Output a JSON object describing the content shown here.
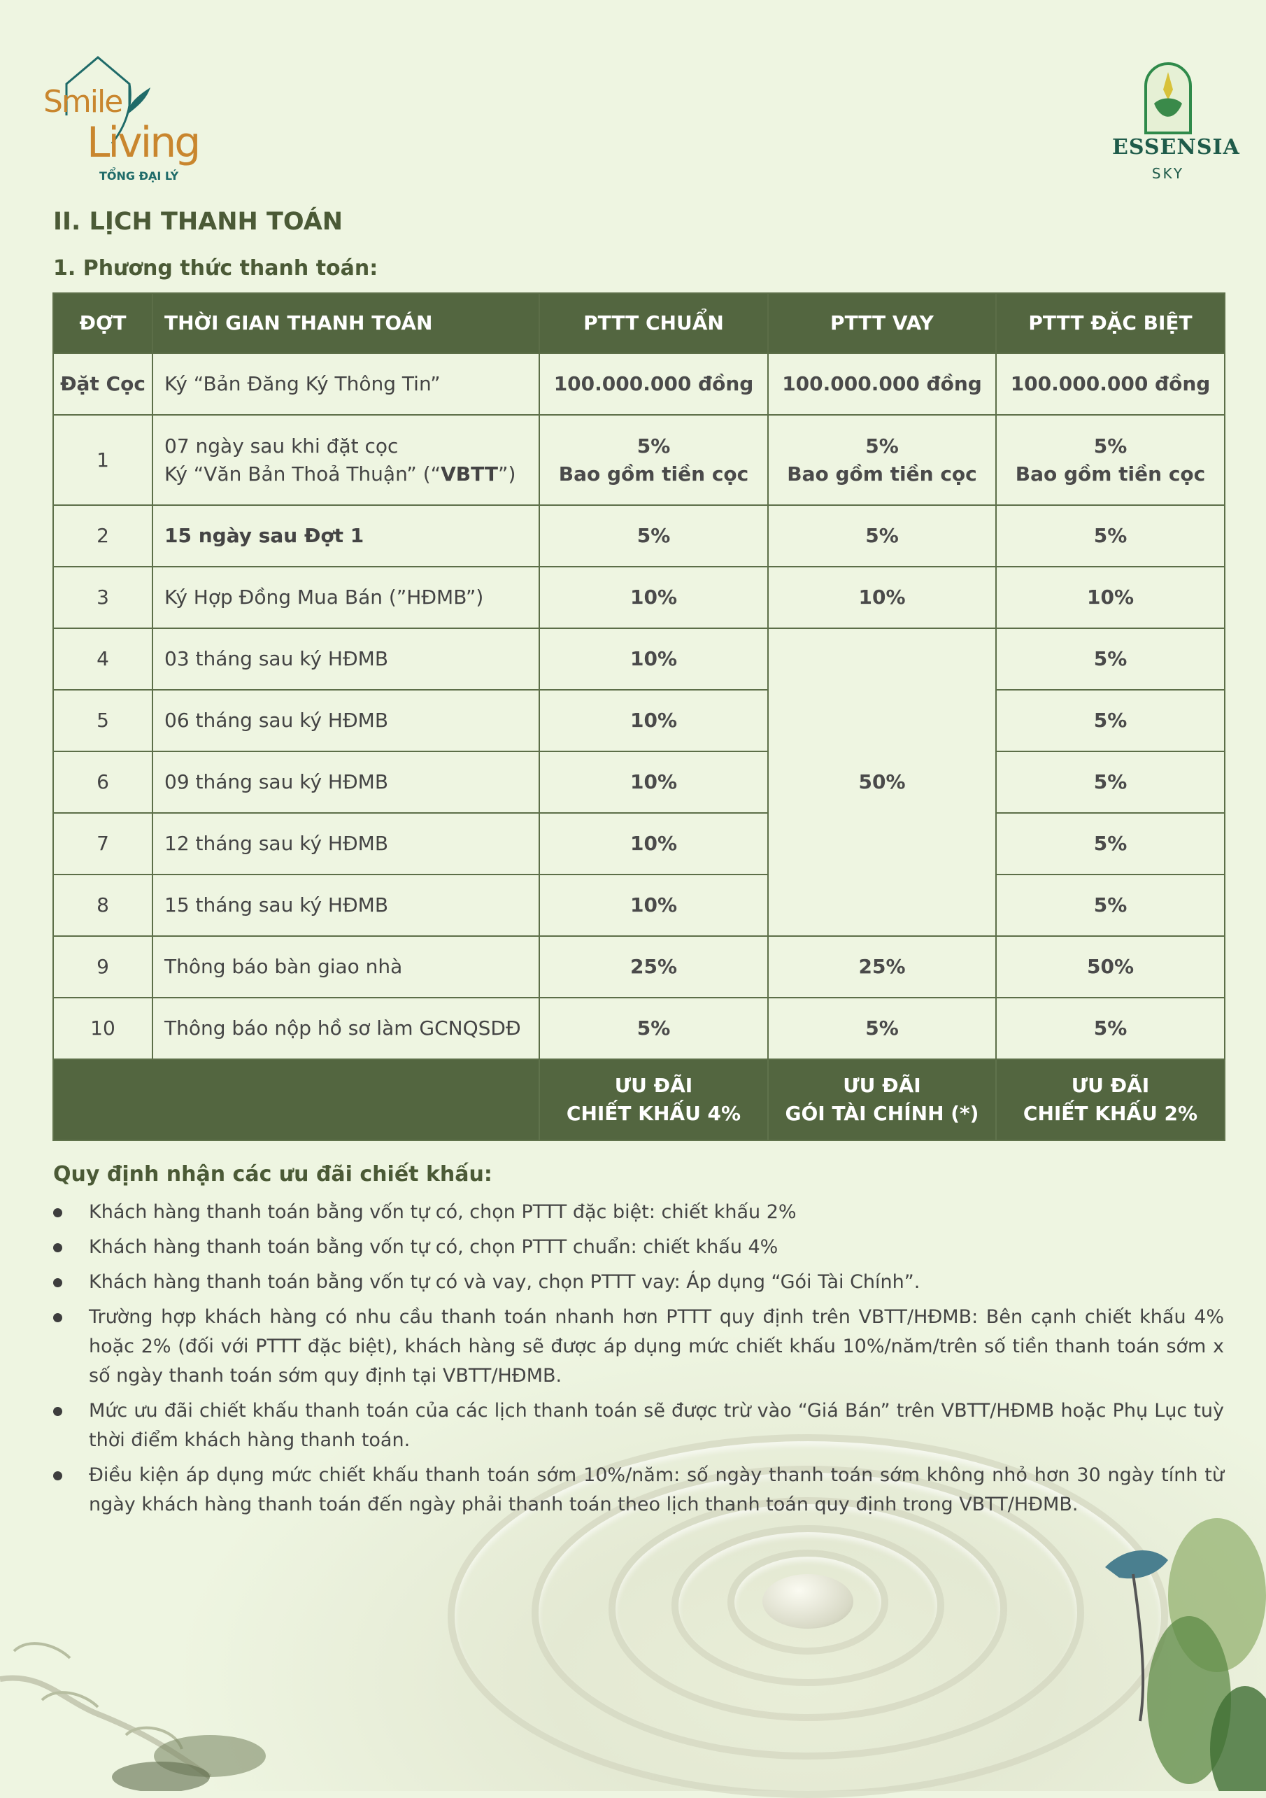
{
  "brand_left": {
    "line1": "Smile",
    "line2": "Living",
    "sub": "TỔNG ĐẠI LÝ"
  },
  "brand_right": {
    "name": "ESSENSIA",
    "sub": "SKY"
  },
  "section_title": "II. LỊCH THANH TOÁN",
  "subsection_title": "1. Phương thức thanh toán:",
  "table": {
    "headers": [
      "ĐỢT",
      "THỜI GIAN THANH TOÁN",
      "PTTT CHUẨN",
      "PTTT VAY",
      "PTTT ĐẶC BIỆT"
    ],
    "deposit": {
      "label": "Đặt Cọc",
      "time": "Ký “Bản Đăng Ký Thông Tin”",
      "standard": "100.000.000 đồng",
      "loan": "100.000.000 đồng",
      "special": "100.000.000 đồng"
    },
    "row1": {
      "no": "1",
      "time_line1": "07 ngày sau khi đặt cọc",
      "time_line2_a": "Ký “Văn Bản Thoả Thuận” (“",
      "time_line2_b": "VBTT",
      "time_line2_c": "”)",
      "pct": "5%",
      "note": "Bao gồm tiền cọc"
    },
    "rows": [
      {
        "no": "2",
        "time": "15 ngày sau Đợt 1",
        "standard": "5%",
        "loan": "5%",
        "special": "5%"
      },
      {
        "no": "3",
        "time": "Ký Hợp Đồng Mua Bán (”HĐMB”)",
        "standard": "10%",
        "loan": "10%",
        "special": "10%"
      },
      {
        "no": "4",
        "time": "03 tháng sau ký HĐMB",
        "standard": "10%",
        "special": "5%"
      },
      {
        "no": "5",
        "time": "06 tháng sau ký HĐMB",
        "standard": "10%",
        "special": "5%"
      },
      {
        "no": "6",
        "time": "09 tháng sau ký HĐMB",
        "standard": "10%",
        "special": "5%"
      },
      {
        "no": "7",
        "time": "12 tháng sau ký HĐMB",
        "standard": "10%",
        "special": "5%"
      },
      {
        "no": "8",
        "time": "15 tháng sau ký HĐMB",
        "standard": "10%",
        "special": "5%"
      },
      {
        "no": "9",
        "time": "Thông báo bàn giao nhà",
        "standard": "25%",
        "loan": "25%",
        "special": "50%"
      },
      {
        "no": "10",
        "time": "Thông báo nộp hồ sơ làm GCNQSDĐ",
        "standard": "5%",
        "loan": "5%",
        "special": "5%"
      }
    ],
    "loan_merged_4_8": "50%",
    "footer": {
      "standard": [
        "ƯU ĐÃI",
        "CHIẾT KHẤU 4%"
      ],
      "loan": [
        "ƯU ĐÃI",
        "GÓI TÀI CHÍNH (*)"
      ],
      "special": [
        "ƯU ĐÃI",
        "CHIẾT KHẤU 2%"
      ]
    }
  },
  "rules": {
    "title": "Quy định nhận các ưu đãi chiết khấu:",
    "items": [
      "Khách hàng thanh toán bằng vốn tự có, chọn PTTT đặc biệt: chiết khấu 2%",
      "Khách hàng thanh toán bằng vốn tự có, chọn PTTT chuẩn: chiết khấu 4%",
      "Khách hàng thanh toán bằng vốn tự có và vay, chọn PTTT vay: Áp dụng “Gói Tài Chính”.",
      "Trường  hợp khách hàng có nhu cầu thanh toán nhanh hơn PTTT quy định trên VBTT/HĐMB: Bên cạnh chiết khấu 4% hoặc 2% (đối với PTTT đặc biệt), khách hàng sẽ được áp dụng mức chiết khấu 10%/năm/trên số tiền thanh toán sớm x số ngày thanh toán sớm quy định tại VBTT/HĐMB.",
      "Mức ưu đãi chiết khấu thanh toán của các lịch thanh toán sẽ được trừ vào “Giá Bán” trên VBTT/HĐMB hoặc Phụ Lục tuỳ thời điểm khách hàng thanh toán.",
      "Điều kiện áp dụng mức chiết khấu thanh toán sớm 10%/năm: số ngày thanh toán sớm không nhỏ hơn 30 ngày tính từ ngày khách hàng thanh toán đến ngày phải thanh toán theo lịch thanh toán quy định trong VBTT/HĐMB."
    ]
  },
  "colors": {
    "background": "#eef5e1",
    "header": "#536640",
    "title": "#4b5a36",
    "brand_orange": "#c9862e",
    "brand_teal": "#1f6b69"
  }
}
